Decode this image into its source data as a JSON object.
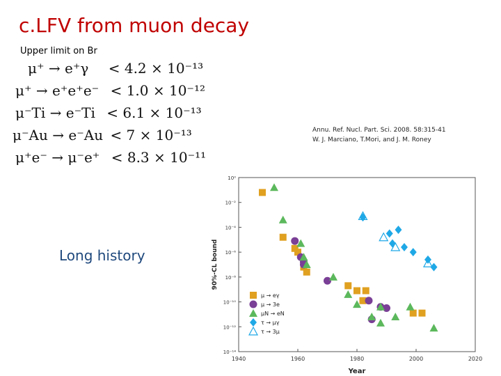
{
  "slide": {
    "title": "c.LFV from muon decay",
    "subtitle": "Upper limit on Br",
    "equations": [
      {
        "process": "μ⁺ → e⁺γ",
        "limit": "< 4.2 × 10⁻¹³"
      },
      {
        "process": "μ⁺ → e⁺e⁺e⁻",
        "limit": "< 1.0 × 10⁻¹²"
      },
      {
        "process": "μ⁻Ti → e⁻Ti",
        "limit": "< 6.1 × 10⁻¹³"
      },
      {
        "process": "μ⁻Au → e⁻Au",
        "limit": "< 7 × 10⁻¹³"
      },
      {
        "process": "μ⁺e⁻ → μ⁻e⁺",
        "limit": "< 8.3 × 10⁻¹¹"
      }
    ],
    "citation_line1": "Annu. Ref. Nucl. Part. Sci. 2008. 58:315-41",
    "citation_line2": "W. J. Marciano, T.Mori, and J. M. Roney",
    "long_history": "Long history"
  },
  "chart_data": {
    "type": "scatter",
    "xlabel": "Year",
    "ylabel": "90%-CL bound",
    "xlim": [
      1940,
      2020
    ],
    "ylim_log10": [
      -14,
      0
    ],
    "log_y": true,
    "x_ticks": [
      "1940",
      "1960",
      "1980",
      "2000",
      "2020"
    ],
    "y_ticks": [
      "10⁰",
      "10⁻²",
      "10⁻⁴",
      "10⁻⁶",
      "10⁻⁸",
      "10⁻¹⁰",
      "10⁻¹²",
      "10⁻¹⁴"
    ],
    "grid": false,
    "legend_position": "bottom-left",
    "series": [
      {
        "name": "μ → eγ",
        "marker": "square",
        "color": "#e0a020",
        "points": [
          [
            1948,
            -1.2
          ],
          [
            1955,
            -4.8
          ],
          [
            1959,
            -5.7
          ],
          [
            1960,
            -6.0
          ],
          [
            1962,
            -7.2
          ],
          [
            1963,
            -7.6
          ],
          [
            1977,
            -8.7
          ],
          [
            1980,
            -9.1
          ],
          [
            1982,
            -9.9
          ],
          [
            1983,
            -9.1
          ],
          [
            1999,
            -10.9
          ],
          [
            2002,
            -10.9
          ]
        ]
      },
      {
        "name": "μ → 3e",
        "marker": "circle",
        "color": "#7a3f96",
        "points": [
          [
            1959,
            -5.1
          ],
          [
            1961,
            -6.4
          ],
          [
            1962,
            -6.8
          ],
          [
            1962,
            -7.0
          ],
          [
            1970,
            -8.3
          ],
          [
            1984,
            -9.9
          ],
          [
            1985,
            -11.4
          ],
          [
            1988,
            -10.4
          ],
          [
            1990,
            -10.5
          ]
        ]
      },
      {
        "name": "μN → eN",
        "marker": "triangle",
        "color": "#5cb85c",
        "points": [
          [
            1952,
            -0.8
          ],
          [
            1955,
            -3.4
          ],
          [
            1961,
            -5.3
          ],
          [
            1962,
            -6.4
          ],
          [
            1963,
            -7.0
          ],
          [
            1972,
            -8.0
          ],
          [
            1977,
            -9.4
          ],
          [
            1980,
            -10.2
          ],
          [
            1985,
            -11.2
          ],
          [
            1988,
            -11.7
          ],
          [
            1988,
            -10.4
          ],
          [
            1993,
            -11.2
          ],
          [
            1998,
            -10.4
          ],
          [
            2006,
            -12.1
          ]
        ]
      },
      {
        "name": "τ → μγ",
        "marker": "diamond",
        "color": "#1fa8e6",
        "points": [
          [
            1982,
            -3.2
          ],
          [
            1991,
            -4.5
          ],
          [
            1992,
            -5.3
          ],
          [
            1994,
            -4.2
          ],
          [
            1996,
            -5.6
          ],
          [
            1999,
            -6.0
          ],
          [
            2004,
            -6.6
          ],
          [
            2006,
            -7.2
          ]
        ]
      },
      {
        "name": "τ → 3μ",
        "marker": "triangle-open",
        "color": "#1fa8e6",
        "points": [
          [
            1982,
            -3.1
          ],
          [
            1989,
            -4.8
          ],
          [
            1993,
            -5.6
          ],
          [
            2004,
            -6.9
          ]
        ]
      }
    ]
  }
}
